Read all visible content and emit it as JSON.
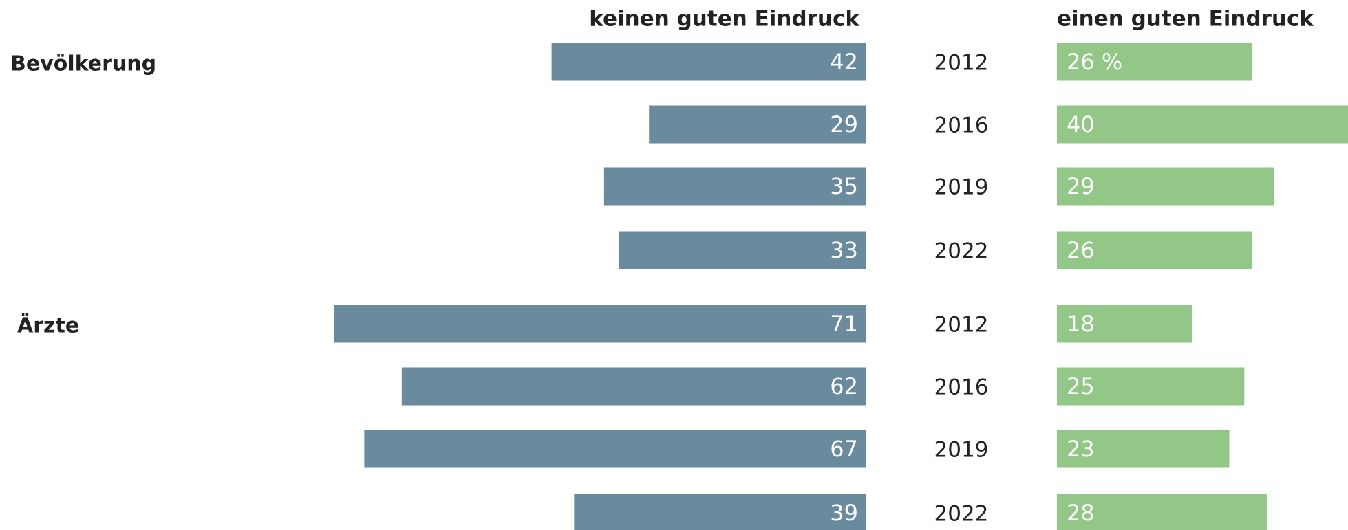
{
  "chart_data": {
    "type": "butterfly",
    "categories": [
      "2012",
      "2016",
      "2019",
      "2022",
      "2012",
      "2016",
      "2019",
      "2022"
    ],
    "group_labels": [
      "Bevölkerung",
      null,
      null,
      null,
      "Ärzte",
      null,
      null,
      null
    ],
    "series": [
      {
        "name": "keinen guten Eindruck",
        "color": "#6a8a9e",
        "values": [
          42,
          29,
          35,
          33,
          71,
          62,
          67,
          39
        ]
      },
      {
        "name": "einen guten Eindruck",
        "color": "#93c787",
        "values": [
          26,
          40,
          29,
          26,
          18,
          25,
          23,
          28
        ],
        "value_labels": [
          "26 %",
          "40",
          "29",
          "26",
          "18",
          "25",
          "23",
          "28"
        ]
      }
    ]
  }
}
